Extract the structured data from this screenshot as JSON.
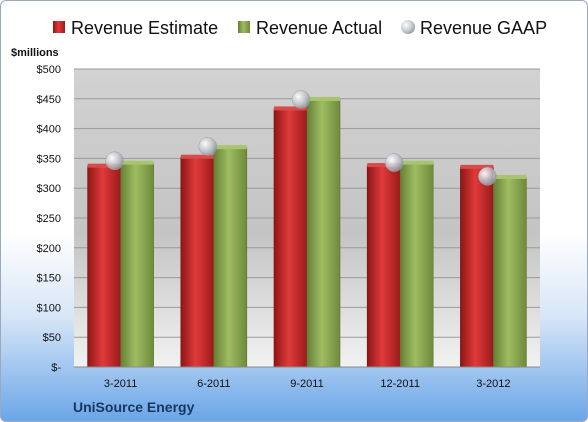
{
  "chart_data": {
    "type": "bar",
    "unit_label": "$millions",
    "company": "UniSource Energy",
    "categories": [
      "3-2011",
      "6-2011",
      "9-2011",
      "12-2011",
      "3-2012"
    ],
    "series": [
      {
        "name": "Revenue Estimate",
        "kind": "bar",
        "color": "#cc2a2a",
        "values": [
          337,
          352,
          433,
          338,
          335
        ]
      },
      {
        "name": "Revenue Actual",
        "kind": "bar",
        "color": "#8fae55",
        "values": [
          342,
          368,
          449,
          342,
          318
        ]
      },
      {
        "name": "Revenue GAAP",
        "kind": "point",
        "color": "#b8bcc4",
        "values": [
          346,
          370,
          449,
          343,
          320
        ]
      }
    ],
    "yticks": [
      "$-",
      "$50",
      "$100",
      "$150",
      "$200",
      "$250",
      "$300",
      "$350",
      "$400",
      "$450",
      "$500"
    ],
    "ylim": [
      0,
      500
    ],
    "grid": true,
    "legend_position": "top"
  }
}
